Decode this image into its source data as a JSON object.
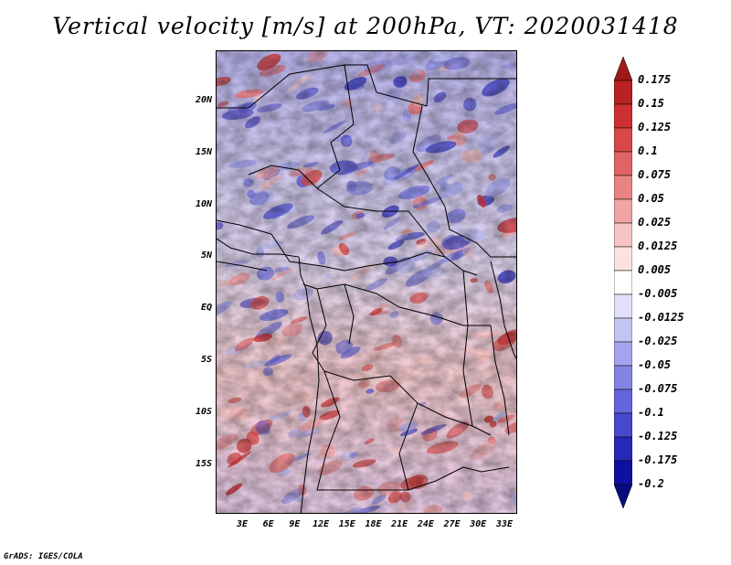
{
  "title": "Vertical velocity [m/s] at 200hPa, VT: 2020031418",
  "footer": "GrADS: IGES/COLA",
  "map": {
    "lat_labels": [
      "20N",
      "15N",
      "10N",
      "5N",
      "EQ",
      "5S",
      "10S",
      "15S"
    ],
    "lon_labels": [
      "3E",
      "6E",
      "9E",
      "12E",
      "15E",
      "18E",
      "21E",
      "24E",
      "27E",
      "30E",
      "33E"
    ]
  },
  "colorbar": {
    "labels": [
      "0.175",
      "0.15",
      "0.125",
      "0.1",
      "0.075",
      "0.05",
      "0.025",
      "0.0125",
      "0.005",
      "-0.005",
      "-0.0125",
      "-0.025",
      "-0.05",
      "-0.075",
      "-0.1",
      "-0.125",
      "-0.175",
      "-0.2"
    ],
    "colors": [
      "#a01818",
      "#b82222",
      "#cc3030",
      "#d84848",
      "#e06464",
      "#e88484",
      "#f0a4a4",
      "#f6c4c4",
      "#fbe2e2",
      "#ffffff",
      "#e0e0f8",
      "#c4c4f2",
      "#a4a4ec",
      "#8484e4",
      "#6464dc",
      "#4848cc",
      "#2828b8",
      "#1010a0",
      "#0a0a80"
    ]
  }
}
